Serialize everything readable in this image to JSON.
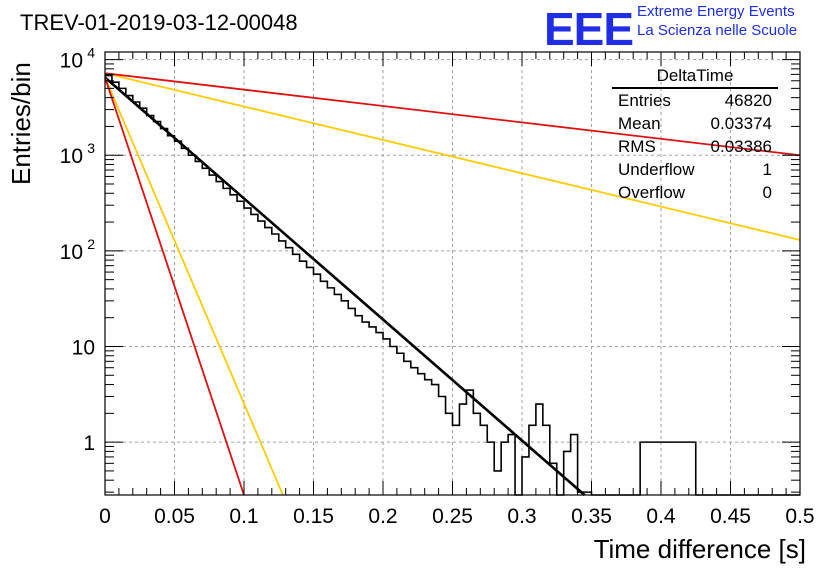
{
  "title": "TREV-01-2019-03-12-00048",
  "logo": {
    "mark": "EEE",
    "line1": "Extreme Energy Events",
    "line2": "La Scienza nelle Scuole",
    "color": "#1f2ee6"
  },
  "stats": {
    "title": "DeltaTime",
    "rows": [
      {
        "label": "Entries",
        "value": "46820"
      },
      {
        "label": "Mean",
        "value": "0.03374"
      },
      {
        "label": "RMS",
        "value": "0.03386"
      },
      {
        "label": "Underflow",
        "value": "1"
      },
      {
        "label": "Overflow",
        "value": "0"
      }
    ]
  },
  "chart_data": {
    "type": "line",
    "xlabel": "Time difference [s]",
    "ylabel": "Entries/bin",
    "xlim": [
      0,
      0.5
    ],
    "ylim": [
      0.28,
      12000
    ],
    "y_scale": "log",
    "grid": true,
    "x_ticks": [
      "0",
      "0.05",
      "0.1",
      "0.15",
      "0.2",
      "0.25",
      "0.3",
      "0.35",
      "0.4",
      "0.45",
      "0.5"
    ],
    "y_ticks": [
      {
        "value": 1,
        "label": "1"
      },
      {
        "value": 10,
        "label": "10"
      },
      {
        "value": 100,
        "label": "10",
        "exp": "2"
      },
      {
        "value": 1000,
        "label": "10",
        "exp": "3"
      },
      {
        "value": 10000,
        "label": "10",
        "exp": "4"
      }
    ],
    "histogram": {
      "bin_width": 0.005,
      "color": "#000000",
      "values": [
        6800,
        5800,
        5000,
        4200,
        3600,
        3100,
        2600,
        2250,
        1900,
        1600,
        1400,
        1180,
        1000,
        860,
        730,
        620,
        530,
        450,
        385,
        330,
        280,
        240,
        205,
        175,
        150,
        127,
        108,
        92,
        78,
        67,
        57,
        48,
        41,
        35,
        30,
        25,
        21,
        18,
        16,
        14,
        12,
        10,
        8.5,
        7,
        6,
        5.2,
        4.5,
        4,
        3,
        2,
        1.5,
        2.5,
        3.5,
        2,
        1.5,
        1,
        0.5,
        1,
        1.2,
        0,
        0.7,
        1.5,
        2.5,
        1.5,
        0.6,
        0.2,
        0.8,
        1.2,
        0.3,
        0.3,
        0,
        0,
        0,
        0,
        0,
        0,
        0,
        1,
        1,
        1,
        1,
        1,
        1,
        1,
        1,
        0,
        0,
        0,
        0,
        0,
        0,
        0,
        0,
        0,
        0,
        0,
        0,
        0,
        0,
        0
      ]
    },
    "series": [
      {
        "color": "#000000",
        "points": [
          [
            0,
            6500
          ],
          [
            0.345,
            0.28
          ]
        ]
      },
      {
        "color": "#ffcc00",
        "points": [
          [
            0,
            7200
          ],
          [
            0.5,
            130
          ]
        ]
      },
      {
        "color": "#ffcc00",
        "points": [
          [
            0,
            6500
          ],
          [
            0.128,
            0.28
          ]
        ]
      },
      {
        "color": "#dd1111",
        "points": [
          [
            0,
            7200
          ],
          [
            0.5,
            1000
          ]
        ]
      },
      {
        "color": "#dd1111",
        "points": [
          [
            0,
            6500
          ],
          [
            0.1,
            0.28
          ]
        ]
      }
    ]
  }
}
